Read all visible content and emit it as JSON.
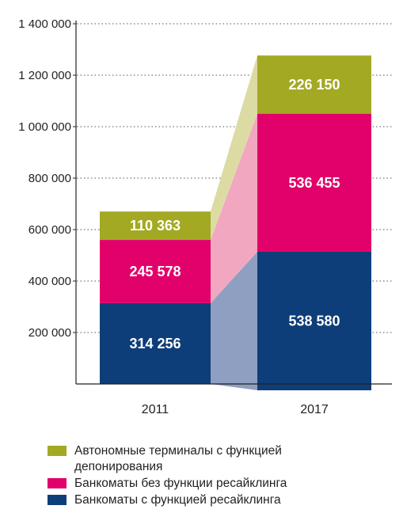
{
  "chart_data": {
    "type": "bar",
    "stacked": true,
    "categories": [
      "2011",
      "2017"
    ],
    "series": [
      {
        "name": "Банкоматы с функцией ресайклинга",
        "values": [
          314256,
          538580
        ],
        "labels": [
          "314 256",
          "538 580"
        ],
        "color": "#0e3e79",
        "connector_color": "#8f9fc2"
      },
      {
        "name": "Банкоматы без функции ресайклинга",
        "values": [
          245578,
          536455
        ],
        "labels": [
          "245 578",
          "536 455"
        ],
        "color": "#e2006a",
        "connector_color": "#f2a7c0"
      },
      {
        "name": "Автономные терминалы с функцией депонирования",
        "name_lines": [
          "Автономные терминалы с функцией",
          "депонирования"
        ],
        "values": [
          110363,
          226150
        ],
        "labels": [
          "110 363",
          "226 150"
        ],
        "color": "#a3a923",
        "connector_color": "#dcdba4"
      }
    ],
    "yticks": [
      200000,
      400000,
      600000,
      800000,
      1000000,
      1200000,
      1400000
    ],
    "ytick_labels": [
      "200 000",
      "400 000",
      "600 000",
      "800 000",
      "1 000 000",
      "1 200 000",
      "1 400 000"
    ],
    "ylim": [
      0,
      1400000
    ],
    "grid": true,
    "legend_position": "bottom"
  }
}
